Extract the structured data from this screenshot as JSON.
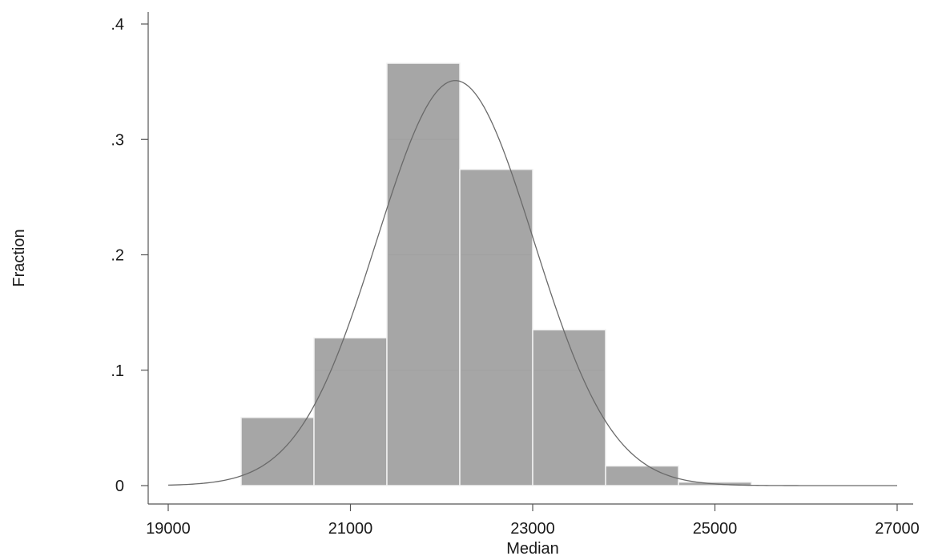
{
  "chart_data": {
    "type": "bar",
    "title": "",
    "xlabel": "Median",
    "ylabel": "Fraction",
    "xlim": [
      19000,
      27000
    ],
    "ylim": [
      0,
      0.4
    ],
    "x_ticks": [
      19000,
      21000,
      23000,
      25000,
      27000
    ],
    "x_tick_labels": [
      "19000",
      "21000",
      "23000",
      "25000",
      "27000"
    ],
    "y_ticks": [
      0,
      0.1,
      0.2,
      0.3,
      0.4
    ],
    "y_tick_labels": [
      "0",
      ".1",
      ".2",
      ".3",
      ".4"
    ],
    "grid": false,
    "bins": [
      {
        "x0": 19800,
        "x1": 20600,
        "value": 0.059
      },
      {
        "x0": 20600,
        "x1": 21400,
        "value": 0.128
      },
      {
        "x0": 21400,
        "x1": 22200,
        "value": 0.366
      },
      {
        "x0": 22200,
        "x1": 23000,
        "value": 0.274
      },
      {
        "x0": 23000,
        "x1": 23800,
        "value": 0.135
      },
      {
        "x0": 23800,
        "x1": 24600,
        "value": 0.017
      },
      {
        "x0": 24600,
        "x1": 25400,
        "value": 0.003
      }
    ],
    "normal_curve": {
      "mean": 22150,
      "sd": 860,
      "peak": 0.351,
      "x_range": [
        19000,
        27000
      ]
    },
    "colors": {
      "bar": "#a6a6a6",
      "curve": "#6a6a6a",
      "axis": "#555555"
    }
  }
}
